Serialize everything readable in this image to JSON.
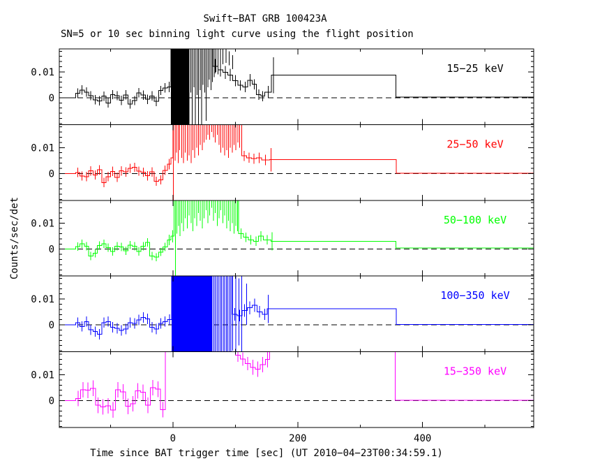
{
  "figure": {
    "title": "Swift−BAT GRB 100423A",
    "subtitle": "SN=5 or 10 sec binning light curve using the flight position",
    "xlabel": "Time since BAT trigger time [sec] (UT 2010−04−23T00:34:59.1)",
    "ylabel": "Counts/sec/det",
    "background": "#ffffff",
    "frame_color": "#000000"
  },
  "chart_data": {
    "type": "line",
    "subtype": "histogram-light-curve-5-panels",
    "xlim": [
      -182,
      578
    ],
    "ylim": [
      -0.0104,
      0.0189
    ],
    "x_ticks_major": [
      0,
      200,
      400
    ],
    "x_tick_labels": [
      "0",
      "200",
      "400"
    ],
    "x_ticks_minor": [
      -100,
      100,
      300,
      500
    ],
    "y_ticks_labeled": [
      {
        "v": 0.01,
        "label": "0.01"
      },
      {
        "v": 0,
        "label": "0"
      }
    ],
    "y_minor_step": 0.002,
    "zero_line": {
      "style": "dashed",
      "color": "#000000"
    },
    "panels": [
      {
        "label": "15−25 keV",
        "color": "#000000",
        "pre": {
          "t0": -156,
          "dt": 7,
          "e": 0.0018,
          "v": [
            0.0018,
            0.003,
            0.0022,
            0.0008,
            -0.0008,
            -0.0012,
            0.0006,
            -0.002,
            0.0012,
            0.0008,
            -0.001,
            0.0011,
            -0.0024,
            -0.0011,
            0.0019,
            0.001,
            -0.0006,
            0.0007,
            -0.0014,
            0.0028,
            0.0038
          ]
        },
        "bins": [
          [
            -9,
            -3,
            0.0042,
            0.002
          ],
          [
            -3,
            25,
            0.03,
            0
          ],
          [
            25,
            64,
            0.022,
            0
          ],
          [
            64,
            72,
            0.0122,
            0.0028
          ],
          [
            72,
            80,
            0.0108,
            0.0026
          ],
          [
            80,
            88,
            0.0098,
            0.0025
          ],
          [
            88,
            96,
            0.0088,
            0.0024
          ],
          [
            96,
            104,
            0.0066,
            0.0022
          ],
          [
            104,
            112,
            0.0048,
            0.002
          ],
          [
            112,
            120,
            0.0042,
            0.002
          ],
          [
            120,
            127,
            0.0068,
            0.0024
          ],
          [
            127,
            134,
            0.0052,
            0.002
          ],
          [
            134,
            141,
            0.0012,
            0.002
          ],
          [
            141,
            147,
            0.0006,
            0.002
          ],
          [
            147,
            158,
            0.0022,
            0.0024
          ],
          [
            158,
            357,
            0.0087,
            0
          ],
          [
            357,
            578,
            0.0002,
            0
          ]
        ],
        "solid": [
          [
            -3,
            25
          ]
        ],
        "spikes": [
          [
            26,
            -0.016,
            0.03
          ],
          [
            28.5,
            0.002,
            0.03
          ],
          [
            31,
            -0.013,
            0.03
          ],
          [
            33.5,
            0.004,
            0.03
          ],
          [
            36,
            -0.015,
            0.03
          ],
          [
            38.5,
            0.001,
            0.03
          ],
          [
            41,
            -0.011,
            0.03
          ],
          [
            43.5,
            0.003,
            0.03
          ],
          [
            46,
            -0.014,
            0.03
          ],
          [
            48.5,
            0.005,
            0.03
          ],
          [
            51,
            0.002,
            0.03
          ],
          [
            53.5,
            -0.009,
            0.03
          ],
          [
            56,
            0.004,
            0.03
          ],
          [
            58.5,
            0.007,
            0.03
          ],
          [
            61,
            0.003,
            0.03
          ],
          [
            63.5,
            0.006,
            0.03
          ],
          [
            66,
            0.008,
            0.028
          ],
          [
            69,
            0.01,
            0.026
          ],
          [
            72,
            0.009,
            0.024
          ],
          [
            76,
            0.012,
            0.022
          ],
          [
            80,
            0.013,
            0.021
          ],
          [
            85,
            0.0135,
            0.0195
          ],
          [
            90,
            0.0125,
            0.018
          ],
          [
            96,
            0.011,
            0.0165
          ]
        ],
        "step_errorbar": [
          161,
          0.0087,
          0.007
        ]
      },
      {
        "label": "25−50 keV",
        "color": "#ff0000",
        "pre": {
          "t0": -156,
          "dt": 7,
          "e": 0.0018,
          "v": [
            0.0004,
            -0.001,
            -0.0012,
            0.001,
            -0.0006,
            0.0014,
            -0.0035,
            -0.0012,
            0.0008,
            -0.0015,
            0.001,
            0.0006,
            0.002,
            0.0024,
            0.0009,
            0.0005,
            -0.0009,
            0.0006,
            -0.003,
            -0.0025,
            0.0012
          ]
        },
        "bins": [
          [
            -9,
            -3,
            0.0036,
            0.002
          ],
          [
            -3,
            0,
            0.006,
            0
          ],
          [
            0,
            110,
            0.03,
            0
          ],
          [
            110,
            118,
            0.0068,
            0.002
          ],
          [
            118,
            126,
            0.0061,
            0.002
          ],
          [
            126,
            134,
            0.0057,
            0.002
          ],
          [
            134,
            142,
            0.006,
            0.002
          ],
          [
            142,
            155,
            0.0052,
            0.002
          ],
          [
            155,
            358,
            0.0053,
            0
          ],
          [
            358,
            578,
            0.00015,
            0
          ]
        ],
        "solid": [],
        "spikes": [
          [
            1,
            -0.02,
            0.03
          ],
          [
            3.5,
            0.005,
            0.03
          ],
          [
            6,
            0.008,
            0.03
          ],
          [
            8.5,
            0.004,
            0.03
          ],
          [
            11,
            0.009,
            0.03
          ],
          [
            14,
            0.006,
            0.03
          ],
          [
            17,
            0.004,
            0.03
          ],
          [
            20,
            0.008,
            0.03
          ],
          [
            23,
            0.005,
            0.03
          ],
          [
            26,
            0.007,
            0.03
          ],
          [
            29,
            0.004,
            0.03
          ],
          [
            32,
            0.009,
            0.03
          ],
          [
            35,
            0.006,
            0.03
          ],
          [
            38,
            0.01,
            0.03
          ],
          [
            41,
            0.007,
            0.03
          ],
          [
            44,
            0.011,
            0.03
          ],
          [
            47,
            0.009,
            0.03
          ],
          [
            50,
            0.012,
            0.03
          ],
          [
            53,
            0.013,
            0.03
          ],
          [
            56,
            0.015,
            0.03
          ],
          [
            59,
            0.013,
            0.03
          ],
          [
            62,
            0.016,
            0.03
          ],
          [
            65,
            0.014,
            0.03
          ],
          [
            68,
            0.012,
            0.03
          ],
          [
            71,
            0.015,
            0.03
          ],
          [
            74,
            0.011,
            0.03
          ],
          [
            77,
            0.008,
            0.03
          ],
          [
            80,
            0.01,
            0.03
          ],
          [
            83,
            0.007,
            0.03
          ],
          [
            86,
            0.009,
            0.03
          ],
          [
            89,
            0.006,
            0.03
          ],
          [
            92,
            0.01,
            0.03
          ],
          [
            95,
            0.008,
            0.03
          ],
          [
            98,
            0.011,
            0.03
          ],
          [
            101,
            0.009,
            0.03
          ],
          [
            104,
            0.012,
            0.03
          ],
          [
            107,
            0.01,
            0.03
          ]
        ],
        "step_errorbar": [
          157,
          0.0053,
          0.0045
        ]
      },
      {
        "label": "50−100 keV",
        "color": "#00ff00",
        "pre": {
          "t0": -156,
          "dt": 7,
          "e": 0.0016,
          "v": [
            0.001,
            0.0021,
            0.0011,
            -0.0026,
            -0.0016,
            0.0014,
            0.0021,
            0.0006,
            -0.0009,
            0.0011,
            0.0009,
            -0.0006,
            0.0016,
            0.0011,
            -0.0009,
            0.0011,
            0.0026,
            -0.0026,
            -0.0031,
            -0.0011,
            0.0009
          ]
        },
        "bins": [
          [
            -9,
            -3,
            0.0036,
            0.002
          ],
          [
            -3,
            2,
            0.005,
            0.0024
          ],
          [
            2,
            105,
            0.03,
            0
          ],
          [
            105,
            113,
            0.006,
            0.002
          ],
          [
            113,
            121,
            0.0046,
            0.0018
          ],
          [
            121,
            129,
            0.0036,
            0.0018
          ],
          [
            129,
            137,
            0.0031,
            0.0018
          ],
          [
            137,
            145,
            0.005,
            0.002
          ],
          [
            145,
            157,
            0.0036,
            0.0018
          ],
          [
            157,
            357,
            0.003,
            0
          ],
          [
            357,
            578,
            0.0005,
            0
          ]
        ],
        "solid": [],
        "spikes": [
          [
            4,
            -0.02,
            0.03
          ],
          [
            6.5,
            0.006,
            0.03
          ],
          [
            9,
            0.009,
            0.03
          ],
          [
            11.5,
            0.005,
            0.03
          ],
          [
            14,
            0.01,
            0.03
          ],
          [
            17,
            0.007,
            0.03
          ],
          [
            20,
            0.012,
            0.03
          ],
          [
            23,
            0.008,
            0.03
          ],
          [
            26,
            0.013,
            0.03
          ],
          [
            29,
            0.01,
            0.03
          ],
          [
            32,
            0.007,
            0.03
          ],
          [
            35,
            0.012,
            0.03
          ],
          [
            38,
            0.009,
            0.03
          ],
          [
            41,
            0.014,
            0.03
          ],
          [
            44,
            0.011,
            0.03
          ],
          [
            47,
            0.008,
            0.03
          ],
          [
            50,
            0.012,
            0.03
          ],
          [
            53,
            0.015,
            0.03
          ],
          [
            56,
            0.01,
            0.03
          ],
          [
            59,
            0.013,
            0.03
          ],
          [
            62,
            0.016,
            0.03
          ],
          [
            65,
            0.011,
            0.03
          ],
          [
            68,
            0.014,
            0.03
          ],
          [
            71,
            0.009,
            0.03
          ],
          [
            74,
            0.012,
            0.03
          ],
          [
            77,
            0.015,
            0.03
          ],
          [
            80,
            0.01,
            0.03
          ],
          [
            83,
            0.013,
            0.03
          ],
          [
            86,
            0.008,
            0.03
          ],
          [
            89,
            0.011,
            0.03
          ],
          [
            92,
            0.007,
            0.03
          ],
          [
            95,
            0.01,
            0.03
          ],
          [
            98,
            0.006,
            0.03
          ],
          [
            101,
            0.009,
            0.03
          ],
          [
            103.5,
            0.007,
            0.03
          ]
        ],
        "step_errorbar": [
          159,
          0.003,
          0.0035
        ]
      },
      {
        "label": "100−350 keV",
        "color": "#0000ff",
        "pre": {
          "t0": -156,
          "dt": 7,
          "e": 0.002,
          "v": [
            0.0009,
            -0.0006,
            0.0013,
            -0.0019,
            -0.0026,
            -0.0036,
            0.0009,
            0.0013,
            -0.0009,
            -0.0013,
            -0.0021,
            -0.0016,
            0.0009,
            0.0006,
            0.0019,
            0.0029,
            0.0023,
            -0.0009,
            -0.0016,
            0.0006,
            0.0013
          ]
        },
        "bins": [
          [
            -9,
            -2,
            0.0021,
            0.002
          ],
          [
            -2,
            62,
            0.03,
            0
          ],
          [
            62,
            95,
            0.025,
            0
          ],
          [
            95,
            103,
            0.0041,
            0.0024
          ],
          [
            103,
            111,
            0.0036,
            0.0022
          ],
          [
            111,
            119,
            0.0056,
            0.0024
          ],
          [
            119,
            127,
            0.0066,
            0.0025
          ],
          [
            127,
            135,
            0.0076,
            0.0026
          ],
          [
            135,
            143,
            0.0051,
            0.0022
          ],
          [
            143,
            151,
            0.0041,
            0.0022
          ],
          [
            151,
            358,
            0.0062,
            0
          ],
          [
            358,
            578,
            0.0002,
            0
          ]
        ],
        "solid": [
          [
            -2,
            62
          ]
        ],
        "spikes": [
          [
            63,
            -0.02,
            0.03
          ],
          [
            65.5,
            -0.02,
            0.03
          ],
          [
            68,
            -0.02,
            0.03
          ],
          [
            70.5,
            -0.02,
            0.03
          ],
          [
            73,
            -0.02,
            0.03
          ],
          [
            75.5,
            -0.02,
            0.03
          ],
          [
            78,
            -0.02,
            0.03
          ],
          [
            80.5,
            -0.02,
            0.03
          ],
          [
            83,
            -0.02,
            0.03
          ],
          [
            85.5,
            -0.02,
            0.03
          ],
          [
            88,
            -0.02,
            0.03
          ],
          [
            90.5,
            -0.015,
            0.03
          ],
          [
            93,
            -0.02,
            0.025
          ],
          [
            96,
            -0.01,
            0.02
          ],
          [
            101,
            -0.018,
            0.03
          ],
          [
            106,
            -0.008,
            0.018
          ],
          [
            110,
            -0.02,
            0.03
          ],
          [
            118,
            0.0,
            0.016
          ]
        ],
        "step_errorbar": [
          153,
          0.0062,
          0.0055
        ]
      },
      {
        "label": "15−350 keV",
        "color": "#ff00ff",
        "pre": {
          "t0": -156,
          "dt": 8,
          "e": 0.003,
          "v": [
            0.0008,
            0.0042,
            0.004,
            0.0048,
            -0.0018,
            -0.0024,
            -0.002,
            -0.0036,
            0.0042,
            0.0034,
            -0.0022,
            -0.0012,
            0.0038,
            0.0032,
            -0.0018,
            0.005,
            0.0044,
            -0.0035
          ]
        },
        "bins": [
          [
            -12,
            100,
            0.03,
            0
          ],
          [
            100,
            108,
            0.0176,
            0.0026
          ],
          [
            108,
            116,
            0.0161,
            0.0026
          ],
          [
            116,
            124,
            0.0143,
            0.0026
          ],
          [
            124,
            132,
            0.0129,
            0.0029
          ],
          [
            132,
            140,
            0.0122,
            0.003
          ],
          [
            140,
            148,
            0.0139,
            0.003
          ],
          [
            148,
            155,
            0.0159,
            0.003
          ],
          [
            155,
            356,
            0.03,
            0
          ],
          [
            356,
            578,
            0.0002,
            0
          ]
        ],
        "solid": [],
        "spikes": [],
        "step_errorbar": null
      }
    ]
  }
}
